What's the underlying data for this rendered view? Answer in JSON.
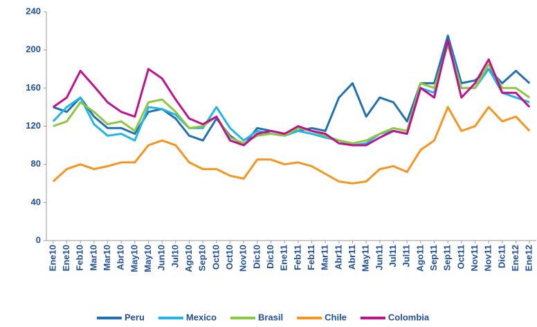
{
  "chart_data": {
    "type": "line",
    "categories": [
      "Ene10",
      "Ene10",
      "Feb10",
      "Mar10",
      "Mar10",
      "Abr10",
      "May10",
      "May10",
      "Jun10",
      "Jul10",
      "Ago10",
      "Sep10",
      "Oct10",
      "Oct10",
      "Nov10",
      "Dic10",
      "Dic10",
      "Ene11",
      "Feb11",
      "Feb11",
      "Mar11",
      "Abr11",
      "Abr11",
      "May11",
      "Jun11",
      "Jul11",
      "Jul11",
      "Ago11",
      "Sep11",
      "Sep11",
      "Oct11",
      "Nov11",
      "Nov11",
      "Dic11",
      "Ene12",
      "Ene12"
    ],
    "series": [
      {
        "name": "Peru",
        "color": "#1f6fb5",
        "values": [
          140,
          135,
          150,
          130,
          118,
          118,
          112,
          135,
          138,
          128,
          110,
          105,
          128,
          110,
          100,
          118,
          115,
          112,
          115,
          118,
          115,
          150,
          165,
          130,
          150,
          145,
          125,
          165,
          165,
          215,
          165,
          168,
          180,
          165,
          178,
          165
        ]
      },
      {
        "name": "Mexico",
        "color": "#22b5e8",
        "values": [
          125,
          140,
          150,
          122,
          110,
          112,
          105,
          140,
          138,
          132,
          118,
          118,
          140,
          118,
          105,
          115,
          112,
          110,
          115,
          112,
          108,
          105,
          100,
          102,
          112,
          115,
          112,
          160,
          155,
          210,
          160,
          160,
          180,
          155,
          150,
          145
        ]
      },
      {
        "name": "Brasil",
        "color": "#8dc63f",
        "values": [
          120,
          125,
          145,
          135,
          122,
          125,
          115,
          145,
          148,
          135,
          118,
          120,
          130,
          108,
          102,
          110,
          112,
          110,
          118,
          115,
          110,
          105,
          102,
          105,
          112,
          118,
          115,
          165,
          160,
          205,
          160,
          160,
          185,
          160,
          160,
          150
        ]
      },
      {
        "name": "Chile",
        "color": "#f7941d",
        "values": [
          62,
          75,
          80,
          75,
          78,
          82,
          82,
          100,
          105,
          100,
          82,
          75,
          75,
          68,
          65,
          85,
          85,
          80,
          82,
          78,
          70,
          62,
          60,
          62,
          75,
          78,
          72,
          95,
          105,
          140,
          115,
          120,
          140,
          125,
          130,
          115
        ]
      },
      {
        "name": "Colombia",
        "color": "#c0118c",
        "values": [
          140,
          150,
          178,
          162,
          145,
          135,
          130,
          180,
          170,
          148,
          128,
          122,
          130,
          105,
          100,
          112,
          115,
          112,
          120,
          115,
          112,
          102,
          100,
          100,
          108,
          115,
          112,
          160,
          150,
          210,
          150,
          165,
          190,
          155,
          155,
          140
        ]
      }
    ],
    "ylim": [
      0,
      240
    ],
    "yticks": [
      0,
      40,
      80,
      120,
      160,
      200,
      240
    ],
    "legend": "bottom"
  }
}
